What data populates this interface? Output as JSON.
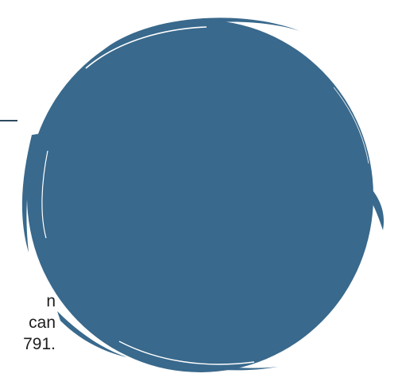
{
  "colors": {
    "circle_fill": "#39698c",
    "rule": "#2f4a5e",
    "text": "#1f1f1f",
    "background": "#ffffff"
  },
  "text_fragment": {
    "line1": "n",
    "line2": "can",
    "line3": "791."
  },
  "icon": "painted-circle-icon"
}
